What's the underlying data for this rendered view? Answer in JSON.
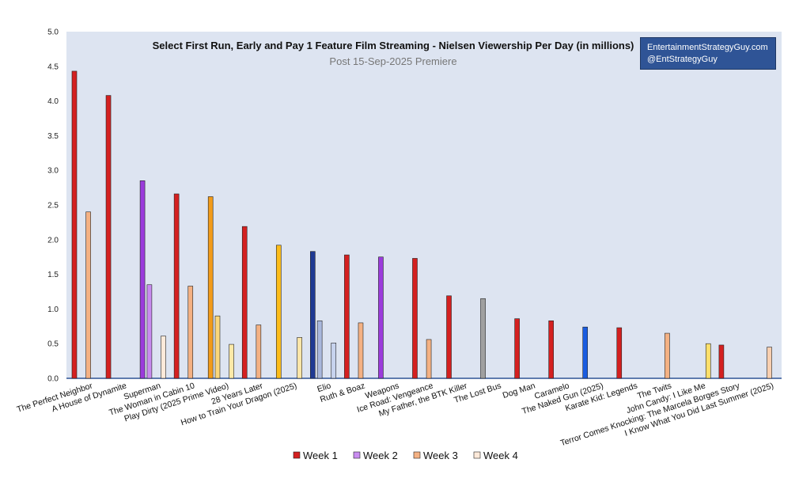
{
  "chart_data": {
    "type": "bar",
    "title": "Select First Run, Early and Pay 1 Feature Film Streaming - Nielsen Viewership Per Day (in millions)",
    "subtitle": "Post 15-Sep-2025 Premiere",
    "ylim": [
      0,
      5
    ],
    "yticks": [
      "0.0",
      "0.5",
      "1.0",
      "1.5",
      "2.0",
      "2.5",
      "3.0",
      "3.5",
      "4.0",
      "4.5",
      "5.0"
    ],
    "grid": false,
    "legend_position": "bottom",
    "categories": [
      "The Perfect Neighbor",
      "A House of Dynamite",
      "Superman",
      "The Woman in Cabin 10",
      "Play Dirty (2025 Prime Video)",
      "28 Years Later",
      "How to Train Your Dragon (2025)",
      "Elio",
      "Ruth & Boaz",
      "Weapons",
      "Ice Road: Vengeance",
      "My Father, the BTK Killer",
      "The Lost Bus",
      "Dog Man",
      "Caramelo",
      "The Naked Gun (2025)",
      "Karate Kid: Legends",
      "The Twits",
      "John Candy: I Like Me",
      "Terror Comes Knocking: The Marcela Borges Story",
      "I Know What You Did Last Summer (2025)"
    ],
    "series": [
      {
        "name": "Week 1",
        "color": "#d42020",
        "values": [
          4.43,
          4.08,
          2.85,
          2.66,
          2.62,
          2.19,
          1.92,
          1.83,
          1.78,
          1.75,
          1.73,
          1.19,
          1.15,
          0.86,
          0.83,
          0.74,
          0.73,
          null,
          null,
          0.48,
          null
        ]
      },
      {
        "name": "Week 2",
        "color": "#c98cf0",
        "values": [
          null,
          null,
          1.35,
          null,
          0.9,
          null,
          null,
          0.83,
          null,
          null,
          null,
          null,
          null,
          null,
          null,
          null,
          null,
          null,
          null,
          null,
          null
        ]
      },
      {
        "name": "Week 3",
        "color": "#f4b183",
        "values": [
          2.4,
          null,
          null,
          1.33,
          null,
          0.77,
          null,
          null,
          0.8,
          null,
          0.56,
          null,
          null,
          null,
          null,
          null,
          null,
          0.65,
          null,
          null,
          0.45
        ]
      },
      {
        "name": "Week 4",
        "color": "#fde9d9",
        "values": [
          null,
          null,
          0.61,
          null,
          0.49,
          null,
          0.59,
          0.51,
          null,
          null,
          null,
          null,
          null,
          null,
          null,
          null,
          null,
          null,
          0.5,
          null,
          null
        ]
      }
    ],
    "bar_colors": [
      [
        "#d42020",
        null,
        "#f4b183",
        null
      ],
      [
        "#d42020",
        null,
        null,
        null
      ],
      [
        "#9b3bdc",
        "#c98cf0",
        null,
        "#fde9d9"
      ],
      [
        "#d42020",
        null,
        "#f4b183",
        null
      ],
      [
        "#f29b1a",
        "#fbd77a",
        null,
        "#fde9a8"
      ],
      [
        "#d42020",
        null,
        "#f4b183",
        null
      ],
      [
        "#fbbc1a",
        null,
        null,
        "#fde6a8"
      ],
      [
        "#1f3a93",
        "#a9b8dd",
        null,
        "#c7d3ee"
      ],
      [
        "#d42020",
        null,
        "#f4b183",
        null
      ],
      [
        "#9b3bdc",
        null,
        null,
        null
      ],
      [
        "#d42020",
        null,
        "#f4b183",
        null
      ],
      [
        "#d42020",
        null,
        null,
        null
      ],
      [
        "#a0a0a0",
        null,
        null,
        null
      ],
      [
        "#d42020",
        null,
        null,
        null
      ],
      [
        "#d42020",
        null,
        null,
        null
      ],
      [
        "#1a5ce0",
        null,
        null,
        null
      ],
      [
        "#d42020",
        null,
        null,
        null
      ],
      [
        null,
        null,
        "#f4b183",
        null
      ],
      [
        null,
        null,
        null,
        "#fde06c"
      ],
      [
        "#d42020",
        null,
        null,
        null
      ],
      [
        null,
        null,
        "#f9cfb0",
        null
      ]
    ],
    "plot_background": "#dde4f1",
    "watermark": {
      "line1": "EntertainmentStrategyGuy.com",
      "line2": "@EntStrategyGuy",
      "background": "#2f5496"
    }
  }
}
